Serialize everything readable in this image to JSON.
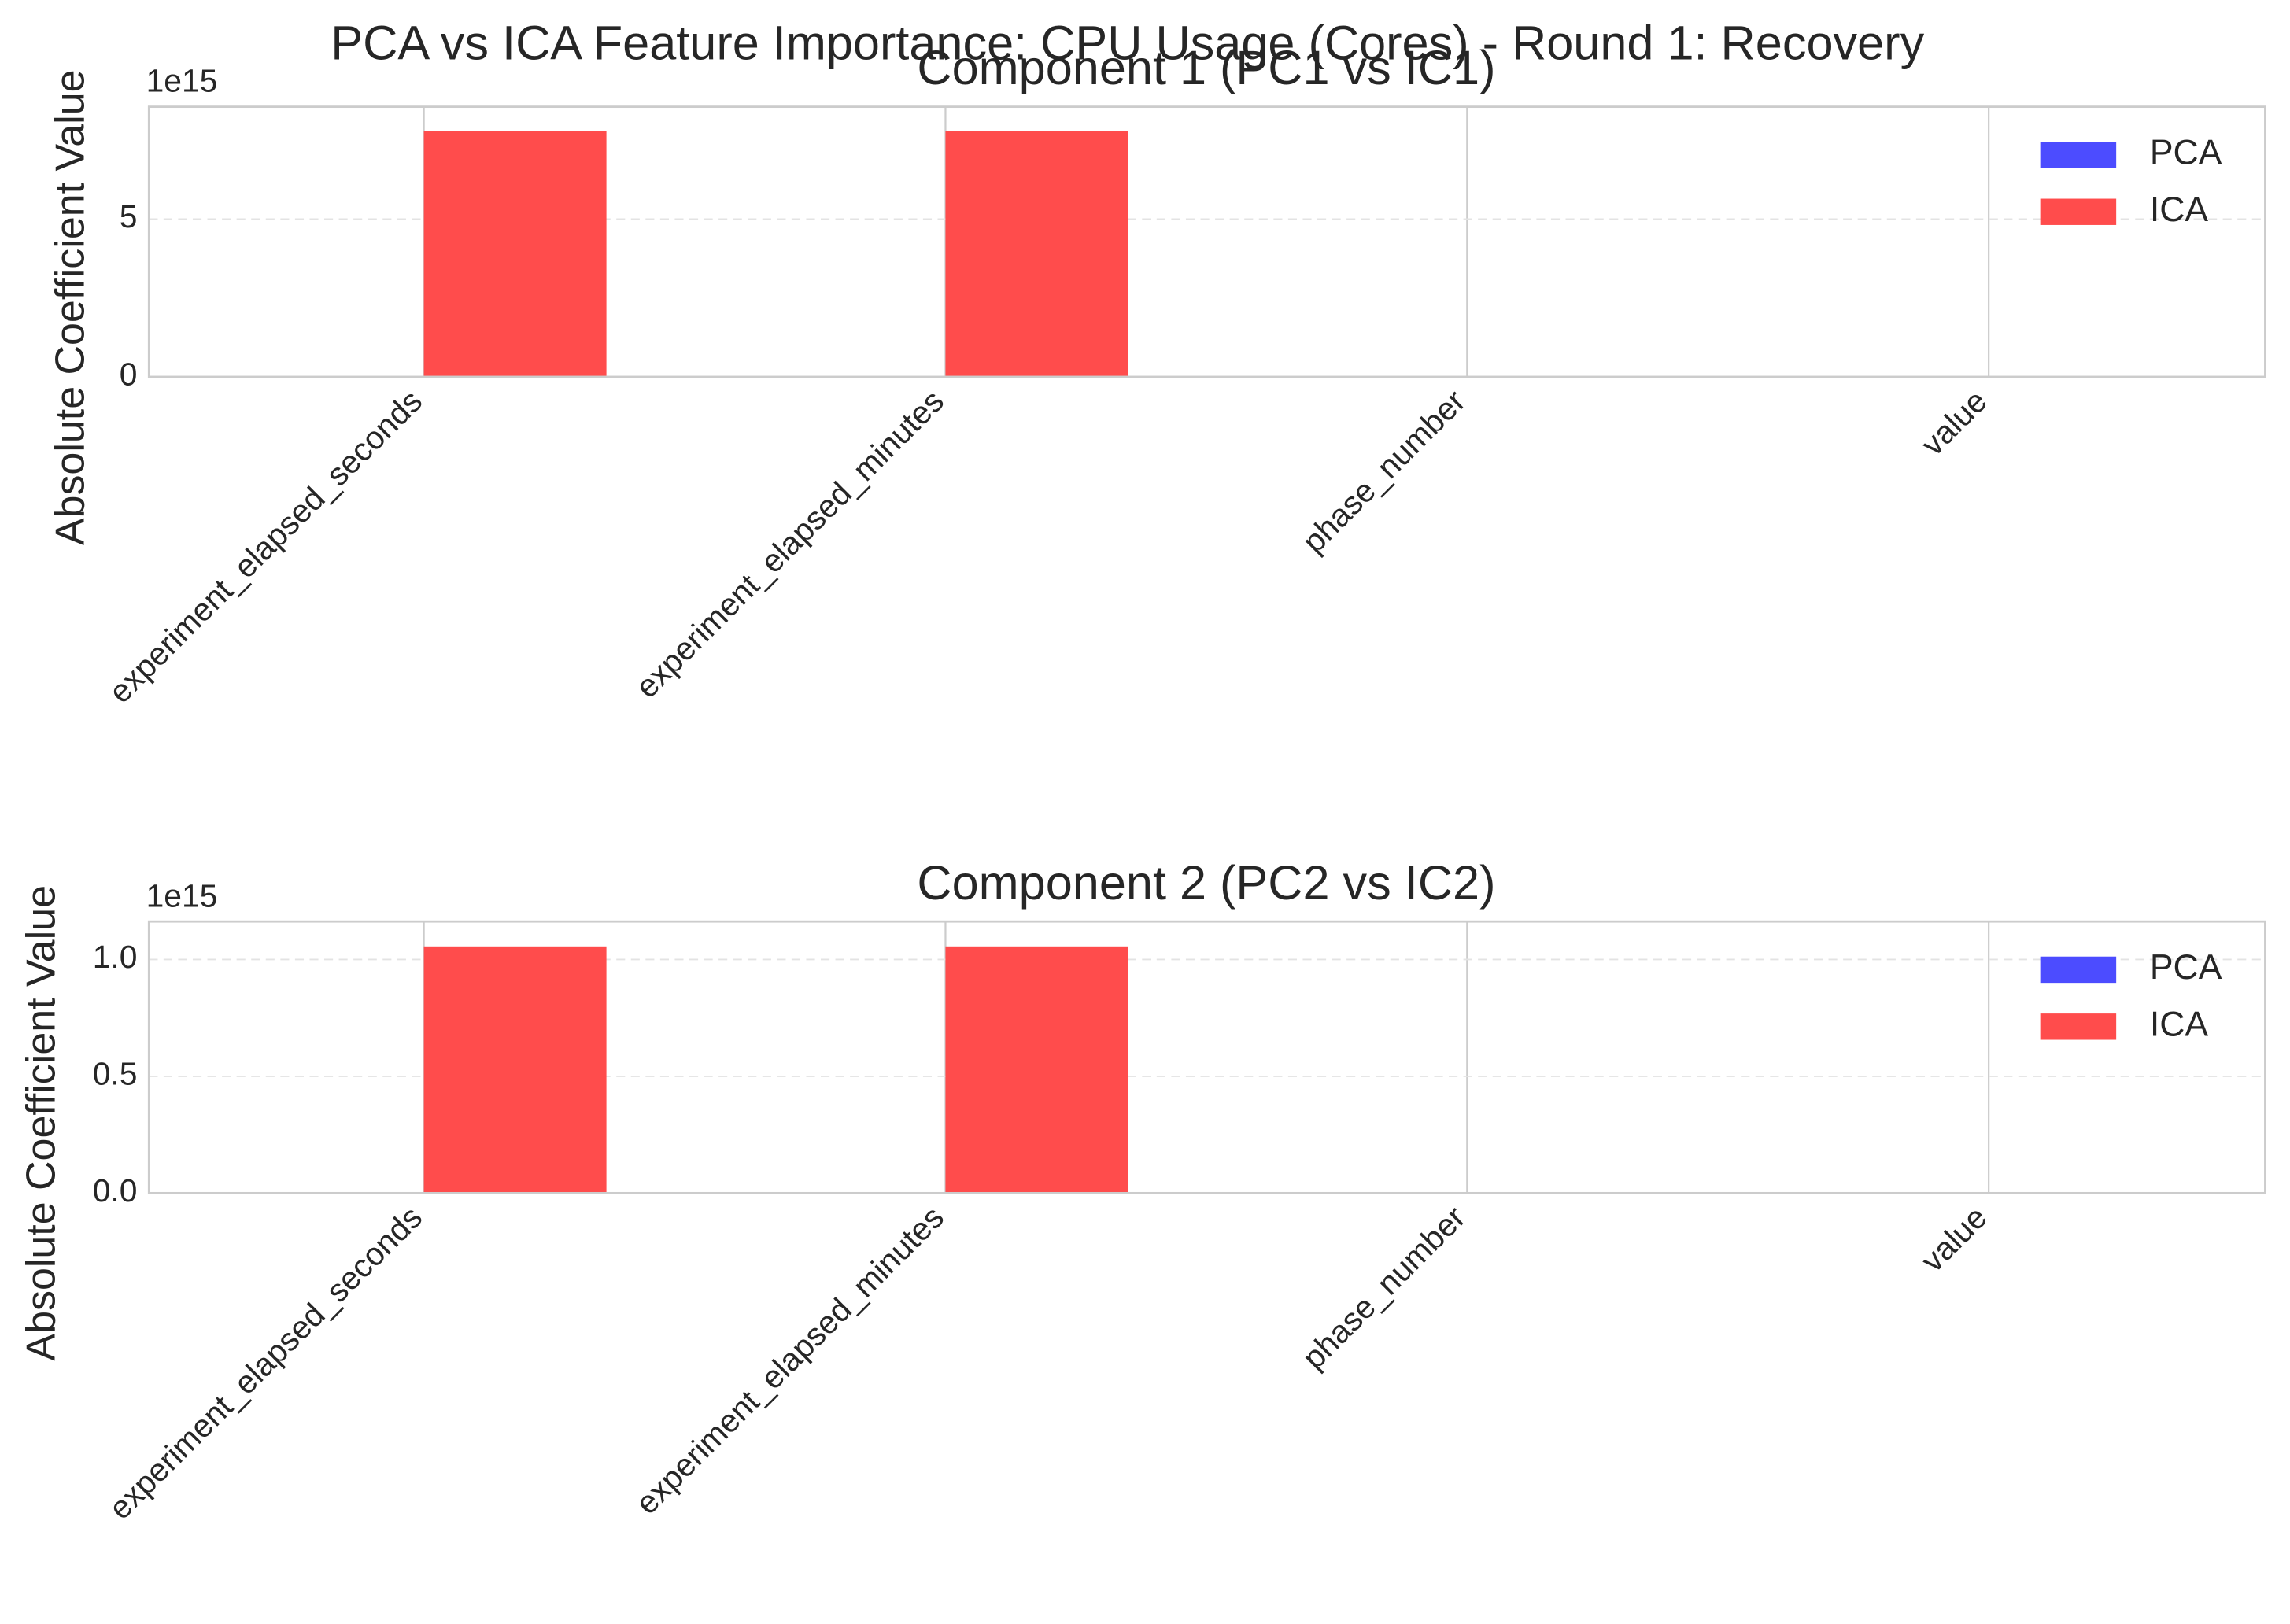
{
  "title": "PCA vs ICA Feature Importance: CPU Usage (Cores) - Round 1: Recovery",
  "chart_data": [
    {
      "type": "bar",
      "title": "Component 1 (PC1 vs IC1)",
      "ylabel": "Absolute Coefficient Value",
      "offset_label": "1e15",
      "categories": [
        "experiment_elapsed_seconds",
        "experiment_elapsed_minutes",
        "phase_number",
        "value"
      ],
      "series": [
        {
          "name": "PCA",
          "color": "#4c4cff",
          "values": [
            0,
            0,
            0,
            0
          ]
        },
        {
          "name": "ICA",
          "color": "#ff4c4c",
          "values": [
            7.78,
            7.78,
            0,
            0
          ]
        }
      ],
      "ylim": [
        0,
        8.56
      ],
      "yticks": [
        0,
        5
      ],
      "grid": true,
      "legend": "upper right"
    },
    {
      "type": "bar",
      "title": "Component 2 (PC2 vs IC2)",
      "ylabel": "Absolute Coefficient Value",
      "offset_label": "1e15",
      "categories": [
        "experiment_elapsed_seconds",
        "experiment_elapsed_minutes",
        "phase_number",
        "value"
      ],
      "series": [
        {
          "name": "PCA",
          "color": "#4c4cff",
          "values": [
            0,
            0,
            0,
            0
          ]
        },
        {
          "name": "ICA",
          "color": "#ff4c4c",
          "values": [
            1.056,
            1.056,
            0,
            0
          ]
        }
      ],
      "ylim": [
        0,
        1.1625
      ],
      "yticks": [
        {
          "value": 0,
          "label": "0.0"
        },
        {
          "value": 0.5,
          "label": "0.5"
        },
        {
          "value": 1,
          "label": "1.0"
        }
      ],
      "grid": true,
      "legend": "upper right"
    }
  ]
}
